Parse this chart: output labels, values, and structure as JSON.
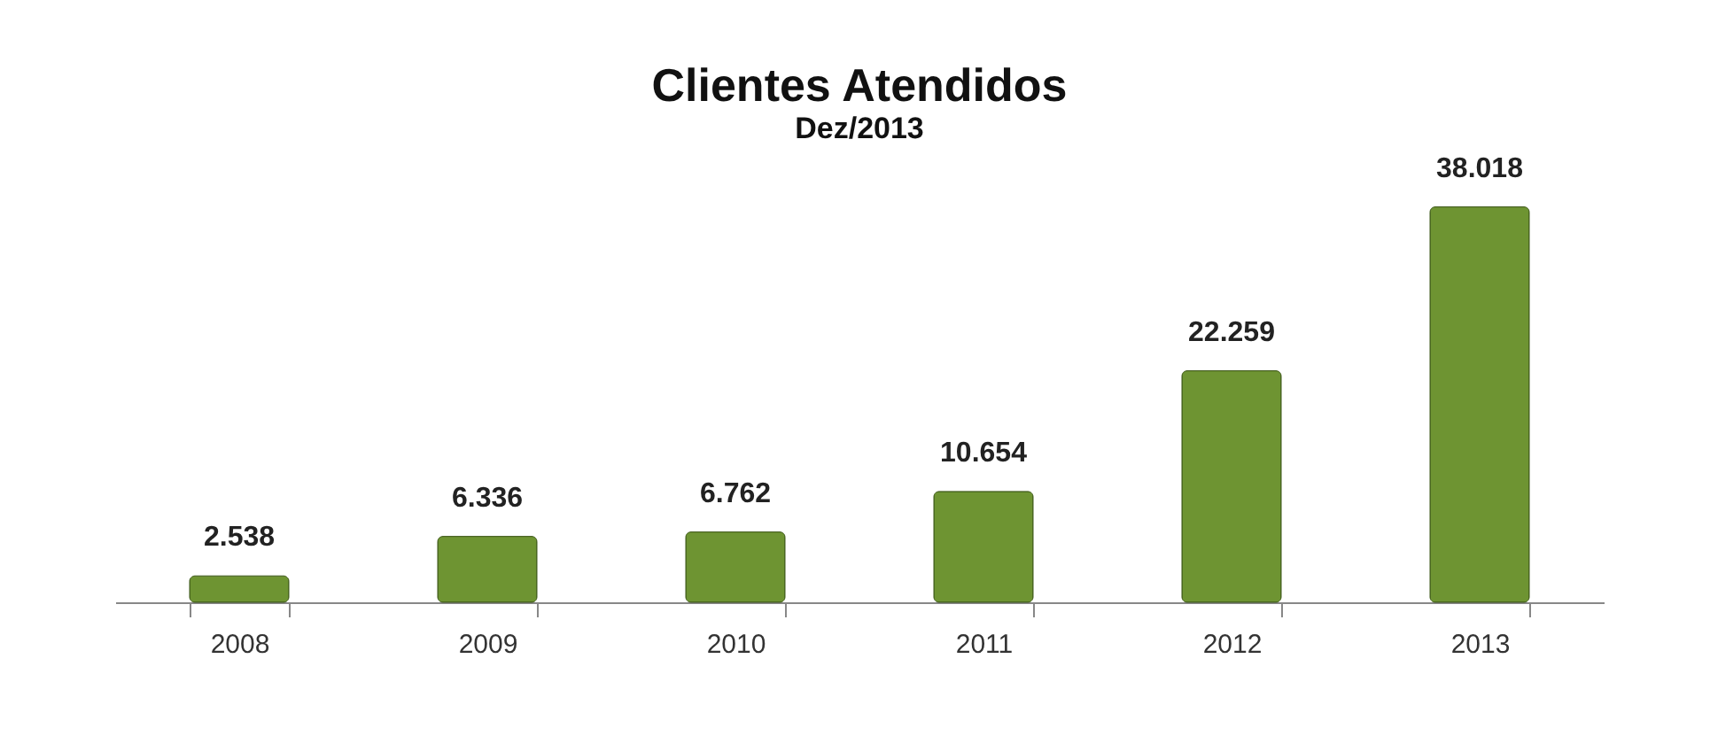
{
  "chart_data": {
    "type": "bar",
    "title": "Clientes Atendidos",
    "subtitle": "Dez/2013",
    "categories": [
      "2008",
      "2009",
      "2010",
      "2011",
      "2012",
      "2013"
    ],
    "values": [
      2538,
      6336,
      6762,
      10654,
      22259,
      38018
    ],
    "value_labels": [
      "2.538",
      "6.336",
      "6.762",
      "10.654",
      "22.259",
      "38.018"
    ],
    "color": "#6e9432"
  }
}
